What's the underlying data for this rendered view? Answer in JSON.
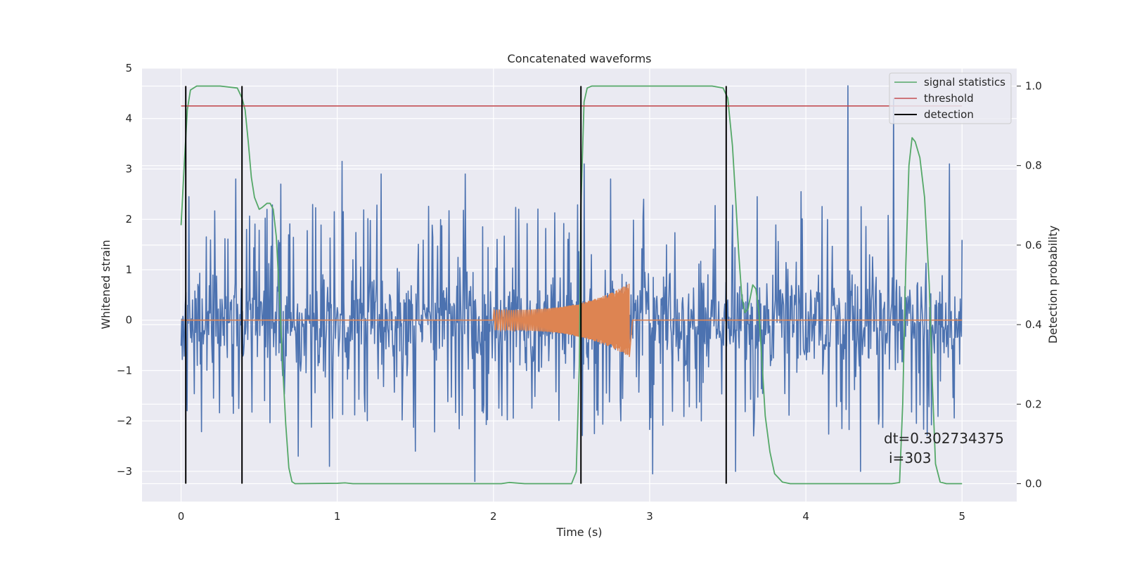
{
  "chart_data": {
    "type": "line",
    "title": "Concatenated waveforms",
    "xlabel": "Time (s)",
    "ylabel_left": "Whitened strain",
    "ylabel_right": "Detection probability",
    "xlim": [
      -0.25,
      5.35
    ],
    "ylim_left": [
      -3.6,
      5.0
    ],
    "ylim_right": [
      -0.045,
      1.045
    ],
    "x_ticks": [
      0,
      1,
      2,
      3,
      4,
      5
    ],
    "y_ticks_left": [
      -3,
      -2,
      -1,
      0,
      1,
      2,
      3,
      4,
      5
    ],
    "y_ticks_right": [
      0.0,
      0.2,
      0.4,
      0.6,
      0.8,
      1.0
    ],
    "grid": true,
    "legend_position": "top-right",
    "series": [
      {
        "name": "signal statistics",
        "axis": "right",
        "color": "#55a868",
        "points": [
          [
            0.0,
            0.65
          ],
          [
            0.02,
            0.8
          ],
          [
            0.04,
            0.94
          ],
          [
            0.06,
            0.99
          ],
          [
            0.1,
            1.0
          ],
          [
            0.25,
            1.0
          ],
          [
            0.36,
            0.995
          ],
          [
            0.39,
            0.97
          ],
          [
            0.41,
            0.94
          ],
          [
            0.43,
            0.86
          ],
          [
            0.45,
            0.77
          ],
          [
            0.47,
            0.72
          ],
          [
            0.5,
            0.69
          ],
          [
            0.52,
            0.695
          ],
          [
            0.55,
            0.705
          ],
          [
            0.57,
            0.705
          ],
          [
            0.59,
            0.69
          ],
          [
            0.61,
            0.62
          ],
          [
            0.63,
            0.47
          ],
          [
            0.65,
            0.3
          ],
          [
            0.67,
            0.15
          ],
          [
            0.69,
            0.04
          ],
          [
            0.71,
            0.005
          ],
          [
            0.73,
            0.0
          ],
          [
            1.0,
            0.001
          ],
          [
            1.05,
            0.002
          ],
          [
            1.1,
            0.0
          ],
          [
            1.9,
            0.0
          ],
          [
            2.05,
            0.0
          ],
          [
            2.1,
            0.003
          ],
          [
            2.2,
            0.0
          ],
          [
            2.5,
            0.0
          ],
          [
            2.53,
            0.03
          ],
          [
            2.55,
            0.3
          ],
          [
            2.56,
            0.7
          ],
          [
            2.58,
            0.96
          ],
          [
            2.6,
            0.995
          ],
          [
            2.63,
            1.0
          ],
          [
            3.4,
            1.0
          ],
          [
            3.47,
            0.995
          ],
          [
            3.5,
            0.97
          ],
          [
            3.53,
            0.85
          ],
          [
            3.55,
            0.72
          ],
          [
            3.57,
            0.58
          ],
          [
            3.59,
            0.47
          ],
          [
            3.61,
            0.43
          ],
          [
            3.63,
            0.44
          ],
          [
            3.66,
            0.5
          ],
          [
            3.68,
            0.49
          ],
          [
            3.7,
            0.43
          ],
          [
            3.72,
            0.3
          ],
          [
            3.74,
            0.17
          ],
          [
            3.77,
            0.08
          ],
          [
            3.8,
            0.025
          ],
          [
            3.85,
            0.004
          ],
          [
            3.9,
            0.0
          ],
          [
            4.55,
            0.0
          ],
          [
            4.6,
            0.003
          ],
          [
            4.62,
            0.2
          ],
          [
            4.64,
            0.55
          ],
          [
            4.66,
            0.8
          ],
          [
            4.68,
            0.87
          ],
          [
            4.7,
            0.86
          ],
          [
            4.73,
            0.82
          ],
          [
            4.76,
            0.72
          ],
          [
            4.79,
            0.5
          ],
          [
            4.81,
            0.25
          ],
          [
            4.83,
            0.05
          ],
          [
            4.86,
            0.004
          ],
          [
            4.9,
            0.0
          ],
          [
            5.0,
            0.0
          ]
        ]
      },
      {
        "name": "threshold",
        "axis": "right",
        "color": "#c44e52",
        "points": [
          [
            0.0,
            0.95
          ],
          [
            5.0,
            0.95
          ]
        ]
      },
      {
        "name": "detection",
        "axis": "right",
        "color": "#000000",
        "vlines": [
          0.03,
          0.39,
          2.56,
          3.49
        ]
      },
      {
        "name": "",
        "axis": "left",
        "color": "#4c72b0",
        "kind": "noise",
        "x_range": [
          0,
          5
        ],
        "typical_range": [
          -1.5,
          1.5
        ],
        "peaks": [
          [
            0.05,
            2.45
          ],
          [
            0.35,
            2.8
          ],
          [
            0.55,
            2.2
          ],
          [
            0.64,
            2.7
          ],
          [
            0.75,
            -2.7
          ],
          [
            0.95,
            -2.9
          ],
          [
            1.03,
            3.15
          ],
          [
            1.28,
            2.9
          ],
          [
            1.5,
            -2.6
          ],
          [
            1.82,
            2.9
          ],
          [
            1.88,
            -3.2
          ],
          [
            2.58,
            3.1
          ],
          [
            2.75,
            2.8
          ],
          [
            2.96,
            2.4
          ],
          [
            3.02,
            -3.05
          ],
          [
            3.55,
            -3.0
          ],
          [
            3.69,
            2.45
          ],
          [
            3.97,
            2.55
          ],
          [
            4.27,
            4.65
          ],
          [
            4.56,
            4.4
          ],
          [
            4.35,
            -3.0
          ],
          [
            4.92,
            3.1
          ]
        ]
      },
      {
        "name": "",
        "axis": "left",
        "color": "#dd8452",
        "kind": "chirp",
        "x_range": [
          2.0,
          2.87
        ],
        "amplitude_start": 0.2,
        "amplitude_peak": 0.75
      }
    ],
    "annotations": {
      "dt": "dt=0.302734375",
      "i": "i=303"
    }
  }
}
